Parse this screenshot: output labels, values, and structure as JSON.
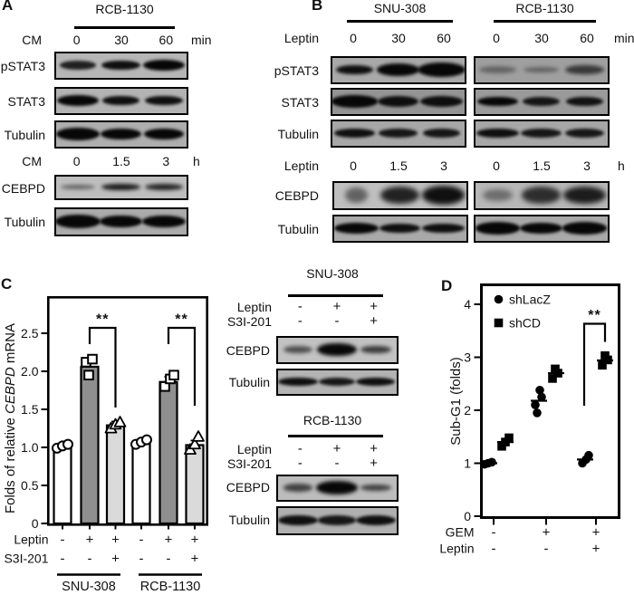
{
  "figure": {
    "panel_a": {
      "letter": "A",
      "cell_line": "RCB-1130",
      "time_course_1": {
        "label": "CM",
        "lanes": [
          "0",
          "30",
          "60"
        ],
        "unit": "min"
      },
      "blots_1": [
        "pSTAT3",
        "STAT3",
        "Tubulin"
      ],
      "time_course_2": {
        "label": "CM",
        "lanes": [
          "0",
          "1.5",
          "3"
        ],
        "unit": "h"
      },
      "blots_2": [
        "CEBPD",
        "Tubulin"
      ]
    },
    "panel_b": {
      "letter": "B",
      "cell_lines": [
        "SNU-308",
        "RCB-1130"
      ],
      "time_course_1": {
        "label": "Leptin",
        "lanes": [
          "0",
          "30",
          "60"
        ],
        "unit": "min"
      },
      "blots_1": [
        "pSTAT3",
        "STAT3",
        "Tubulin"
      ],
      "time_course_2": {
        "label": "Leptin",
        "lanes": [
          "0",
          "1.5",
          "3"
        ],
        "unit": "h"
      },
      "blots_2": [
        "CEBPD",
        "Tubulin"
      ]
    },
    "panel_c": {
      "letter": "C",
      "blot_groups": [
        {
          "title": "SNU-308",
          "rows": [
            {
              "label": "Leptin",
              "values": [
                "-",
                "+",
                "+"
              ]
            },
            {
              "label": "S3I-201",
              "values": [
                "-",
                "-",
                "+"
              ]
            }
          ],
          "blots": [
            "CEBPD",
            "Tubulin"
          ]
        },
        {
          "title": "RCB-1130",
          "rows": [
            {
              "label": "Leptin",
              "values": [
                "-",
                "+",
                "+"
              ]
            },
            {
              "label": "S3I-201",
              "values": [
                "-",
                "-",
                "+"
              ]
            }
          ],
          "blots": [
            "CEBPD",
            "Tubulin"
          ]
        }
      ]
    },
    "panel_d": {
      "letter": "D"
    }
  },
  "colors": {
    "ink": "#000000",
    "bar_white": "#ffffff",
    "bar_dark": "#8f8f8f",
    "bar_light": "#dadada",
    "marker_open_fill": "#ffffff",
    "marker_closed_fill": "#000000"
  },
  "blot_bands": {
    "a_pstat3": [
      [
        0.85,
        1.0,
        0.85
      ],
      [
        0.95,
        1.05,
        1.0
      ],
      [
        1.0,
        1.15,
        1.15
      ]
    ],
    "a_stat3": [
      [
        1.0,
        1.15,
        1.15
      ],
      [
        0.95,
        1.0,
        1.0
      ],
      [
        0.95,
        1.05,
        1.0
      ]
    ],
    "a_tub1": [
      [
        1.0,
        1.2,
        1.25
      ],
      [
        1.0,
        1.1,
        1.15
      ],
      [
        1.0,
        1.1,
        1.15
      ]
    ],
    "a_cebpd": [
      [
        0.5,
        0.95,
        0.55
      ],
      [
        0.9,
        1.05,
        0.8
      ],
      [
        0.85,
        1.05,
        0.75
      ]
    ],
    "a_tub2": [
      [
        1.0,
        1.25,
        1.3
      ],
      [
        1.0,
        1.15,
        1.2
      ],
      [
        1.0,
        1.2,
        1.2
      ]
    ],
    "b_snu_pstat3": [
      [
        0.95,
        1.0,
        1.0
      ],
      [
        1.0,
        1.15,
        1.25
      ],
      [
        1.0,
        1.3,
        1.5
      ]
    ],
    "b_rcb_pstat3": [
      [
        0.38,
        1.0,
        0.7
      ],
      [
        0.4,
        0.95,
        0.6
      ],
      [
        0.68,
        1.05,
        1.0
      ]
    ],
    "b_snu_stat3": [
      [
        1.0,
        1.25,
        1.2
      ],
      [
        0.95,
        1.1,
        1.1
      ],
      [
        0.95,
        1.15,
        1.1
      ]
    ],
    "b_rcb_stat3": [
      [
        1.0,
        1.1,
        1.0
      ],
      [
        0.9,
        1.0,
        0.95
      ],
      [
        0.92,
        1.0,
        1.0
      ]
    ],
    "b_snu_tub1": [
      [
        0.95,
        1.1,
        0.9
      ],
      [
        0.9,
        1.05,
        0.9
      ],
      [
        0.9,
        1.0,
        0.9
      ]
    ],
    "b_rcb_tub1": [
      [
        0.95,
        1.15,
        1.0
      ],
      [
        0.9,
        1.1,
        0.95
      ],
      [
        0.9,
        1.05,
        0.95
      ]
    ],
    "b_snu_cebpd": [
      [
        0.5,
        0.62,
        1.5
      ],
      [
        0.85,
        1.05,
        1.7
      ],
      [
        0.95,
        1.15,
        1.8
      ]
    ],
    "b_rcb_cebpd": [
      [
        0.42,
        0.8,
        1.2
      ],
      [
        0.78,
        1.05,
        1.6
      ],
      [
        0.88,
        1.15,
        1.7
      ]
    ],
    "b_snu_tub2": [
      [
        1.0,
        1.2,
        1.1
      ],
      [
        0.95,
        1.1,
        1.0
      ],
      [
        0.95,
        1.15,
        1.0
      ]
    ],
    "b_rcb_tub2": [
      [
        1.0,
        1.2,
        1.2
      ],
      [
        1.0,
        1.15,
        1.15
      ],
      [
        1.0,
        1.2,
        1.2
      ]
    ],
    "c_snu_cebpd": [
      [
        0.62,
        0.9,
        0.75
      ],
      [
        1.0,
        1.2,
        1.35
      ],
      [
        0.72,
        0.95,
        0.8
      ]
    ],
    "c_snu_tub": [
      [
        0.95,
        1.2,
        0.95
      ],
      [
        0.9,
        1.12,
        0.88
      ],
      [
        0.95,
        1.18,
        0.92
      ]
    ],
    "c_rcb_cebpd": [
      [
        0.68,
        0.9,
        0.8
      ],
      [
        1.0,
        1.25,
        1.4
      ],
      [
        0.68,
        0.95,
        0.75
      ]
    ],
    "c_rcb_tub": [
      [
        0.95,
        1.2,
        1.0
      ],
      [
        0.9,
        1.15,
        0.9
      ],
      [
        0.95,
        1.2,
        0.95
      ]
    ]
  },
  "chart_data": [
    {
      "panel": "C",
      "type": "bar",
      "ylabel": "Folds of relative CEBPD mRNA",
      "ylabel_parts": [
        "Folds of relative ",
        "CEBPD",
        " mRNA"
      ],
      "ylim": [
        0,
        3.0
      ],
      "yticks": [
        0,
        0.5,
        1,
        1.5,
        2,
        2.5
      ],
      "ytick_labels": [
        "0",
        "0.5",
        "1.0",
        "1.5",
        "2.0",
        "2.5"
      ],
      "bar_values": [
        1.02,
        2.06,
        1.29,
        1.07,
        1.86,
        1.03
      ],
      "bar_errors": [
        0,
        0.08,
        0.05,
        0,
        0.07,
        0.06
      ],
      "bar_fills": [
        "white",
        "dark",
        "light",
        "white",
        "dark",
        "light"
      ],
      "point_markers": [
        "circle",
        "square",
        "triangle",
        "circle",
        "square",
        "triangle"
      ],
      "points": [
        [
          0.99,
          1.02,
          1.04
        ],
        [
          2.12,
          2.16,
          1.95
        ],
        [
          1.25,
          1.3,
          1.33
        ],
        [
          1.04,
          1.07,
          1.1
        ],
        [
          1.8,
          1.9,
          1.95
        ],
        [
          0.97,
          1.04,
          1.14
        ]
      ],
      "condition_rows": [
        {
          "label": "Leptin",
          "values": [
            "-",
            "+",
            "+",
            "-",
            "+",
            "+"
          ]
        },
        {
          "label": "S3I-201",
          "values": [
            "-",
            "-",
            "+",
            "-",
            "-",
            "+"
          ]
        }
      ],
      "groups": [
        "SNU-308",
        "RCB-1130"
      ],
      "significance": [
        {
          "between": [
            1,
            2
          ],
          "label": "**"
        },
        {
          "between": [
            4,
            5
          ],
          "label": "**"
        }
      ],
      "grid": false,
      "legend_position": "none"
    },
    {
      "panel": "D",
      "type": "scatter",
      "ylabel": "Sub-G1 (folds)",
      "ylim": [
        0,
        4.4
      ],
      "yticks": [
        0,
        1,
        2,
        3,
        4
      ],
      "ytick_labels": [
        "0",
        "1",
        "2",
        "3",
        "4"
      ],
      "legend": [
        {
          "label": "shLacZ",
          "marker": "circle"
        },
        {
          "label": "shCD",
          "marker": "square"
        }
      ],
      "series": [
        {
          "name": "shLacZ",
          "marker": "circle",
          "points": [
            [
              0.98,
              1.0,
              1.02
            ],
            [
              1.95,
              2.1,
              2.25,
              2.38
            ],
            [
              1.0,
              1.07,
              1.15
            ]
          ],
          "means": [
            1.0,
            2.18,
            1.07
          ]
        },
        {
          "name": "shCD",
          "marker": "square",
          "points": [
            [
              1.32,
              1.4,
              1.48
            ],
            [
              2.6,
              2.7,
              2.78
            ],
            [
              2.85,
              2.95,
              3.03
            ]
          ],
          "means": [
            1.4,
            2.7,
            2.94
          ]
        }
      ],
      "condition_rows": [
        {
          "label": "GEM",
          "values": [
            "-",
            "+",
            "+"
          ]
        },
        {
          "label": "Leptin",
          "values": [
            "-",
            "-",
            "+"
          ]
        }
      ],
      "significance": [
        {
          "group": 2,
          "between": [
            "shLacZ",
            "shCD"
          ],
          "label": "**"
        }
      ],
      "grid": false,
      "legend_position": "top-left-inside"
    }
  ]
}
